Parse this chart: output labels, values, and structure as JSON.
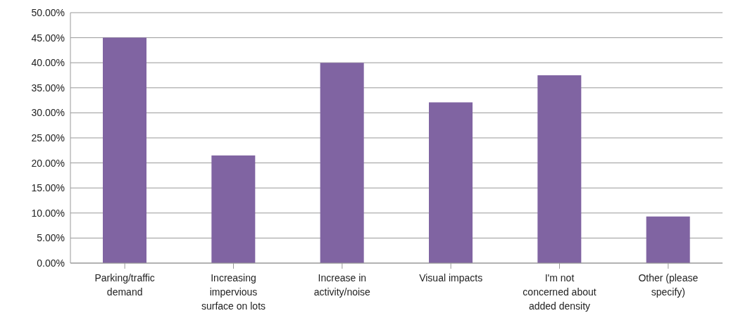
{
  "chart_data": {
    "type": "bar",
    "categories": [
      "Parking/traffic demand",
      "Increasing impervious surface on lots",
      "Increase in activity/noise",
      "Visual impacts",
      "I'm not concerned about added density",
      "Other (please specify)"
    ],
    "values": [
      45,
      21.5,
      40,
      32.1,
      37.5,
      9.3
    ],
    "color": "#8064a2",
    "ylim": [
      0,
      50
    ],
    "yticks": [
      {
        "value": 0,
        "label": "0.00%"
      },
      {
        "value": 5,
        "label": "5.00%"
      },
      {
        "value": 10,
        "label": "10.00%"
      },
      {
        "value": 15,
        "label": "15.00%"
      },
      {
        "value": 20,
        "label": "20.00%"
      },
      {
        "value": 25,
        "label": "25.00%"
      },
      {
        "value": 30,
        "label": "30.00%"
      },
      {
        "value": 35,
        "label": "35.00%"
      },
      {
        "value": 40,
        "label": "40.00%"
      },
      {
        "value": 45,
        "label": "45.00%"
      },
      {
        "value": 50,
        "label": "50.00%"
      }
    ],
    "grid": "y",
    "legend": false
  }
}
